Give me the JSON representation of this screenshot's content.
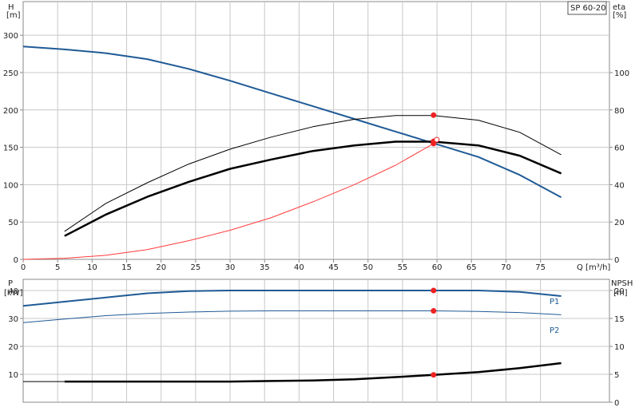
{
  "chart_data": [
    {
      "type": "line",
      "panel": "head-efficiency",
      "product_label": "SP 60-20",
      "x_unit_label": "Q [m³/h]",
      "x_ticks": [
        0,
        5,
        10,
        15,
        20,
        25,
        30,
        35,
        40,
        45,
        50,
        55,
        60,
        65,
        70,
        75
      ],
      "xlim": [
        0,
        85
      ],
      "y_left": {
        "label_top": "H",
        "label_unit": "[m]",
        "ticks": [
          0,
          50,
          100,
          150,
          200,
          250,
          300
        ],
        "ylim": [
          0,
          345
        ]
      },
      "y_right": {
        "label_top": "eta",
        "label_unit": "[%]",
        "ticks": [
          0,
          20,
          40,
          60,
          80,
          100
        ],
        "ylim": [
          0,
          138
        ]
      },
      "grid": true,
      "series": [
        {
          "axis": "left",
          "color": "#1f5a96",
          "width": 2,
          "x": [
            0,
            6,
            12,
            18,
            24,
            30,
            36,
            42,
            48,
            54,
            60,
            66,
            72,
            78
          ],
          "y": [
            285,
            281,
            276,
            268,
            255,
            239,
            222,
            205,
            188,
            171,
            154,
            137,
            113,
            83
          ]
        },
        {
          "axis": "left",
          "color": "#ff3b3b",
          "width": 1,
          "x": [
            0,
            6,
            12,
            18,
            24,
            30,
            36,
            42,
            48,
            54,
            59.5
          ],
          "y": [
            0,
            1.5,
            5.5,
            13,
            25,
            39,
            56,
            77,
            100,
            126,
            155
          ]
        },
        {
          "axis": "right",
          "color": "#000000",
          "width": 1,
          "x": [
            6,
            12,
            18,
            24,
            30,
            36,
            42,
            48,
            54,
            59.5,
            66,
            72,
            78
          ],
          "y": [
            15,
            30,
            41,
            51,
            59,
            65.5,
            71,
            75,
            77,
            77,
            74.5,
            68,
            56
          ]
        },
        {
          "axis": "right",
          "color": "#000000",
          "width": 2.5,
          "x": [
            6,
            12,
            18,
            24,
            30,
            36,
            42,
            48,
            54,
            59.5,
            66,
            72,
            78
          ],
          "y": [
            12.5,
            24,
            33.5,
            41.5,
            48.5,
            53.5,
            58,
            61,
            63,
            63,
            61,
            55.5,
            46
          ]
        }
      ],
      "markers": [
        {
          "axis": "left",
          "x": 59.5,
          "y": 193
        },
        {
          "axis": "left",
          "x": 59.5,
          "y": 158
        },
        {
          "axis": "left",
          "x": 59.5,
          "y": 155
        }
      ]
    },
    {
      "type": "line",
      "panel": "power-npsh",
      "y_left": {
        "label_top": "P",
        "label_unit": "[kW]",
        "ticks": [
          10,
          20,
          30,
          40
        ],
        "ylim": [
          0,
          44
        ]
      },
      "y_right": {
        "label_top": "NPSH",
        "label_unit": "[m]",
        "ticks": [
          0,
          5,
          10,
          15,
          20
        ],
        "ylim": [
          0,
          22
        ]
      },
      "series": [
        {
          "name": "P1",
          "axis": "left",
          "color": "#1f5a96",
          "width": 2,
          "x": [
            0,
            6,
            12,
            18,
            24,
            30,
            36,
            42,
            48,
            54,
            59.5,
            66,
            72,
            78
          ],
          "y": [
            34.5,
            36,
            37.5,
            39,
            39.8,
            40,
            40,
            40,
            40,
            40,
            40,
            40,
            39.5,
            38
          ]
        },
        {
          "name": "P2",
          "axis": "left",
          "color": "#1f5a96",
          "width": 1,
          "x": [
            0,
            6,
            12,
            18,
            24,
            30,
            36,
            42,
            48,
            54,
            59.5,
            66,
            72,
            78
          ],
          "y": [
            28.5,
            29.8,
            31,
            31.8,
            32.3,
            32.6,
            32.7,
            32.7,
            32.7,
            32.7,
            32.7,
            32.5,
            32.1,
            31.3
          ]
        },
        {
          "axis": "right",
          "color": "#000000",
          "width": 2.5,
          "x": [
            6,
            12,
            18,
            24,
            30,
            36,
            42,
            48,
            54,
            59.5,
            66,
            72,
            78
          ],
          "y": [
            3.7,
            3.7,
            3.7,
            3.7,
            3.7,
            3.8,
            3.9,
            4.1,
            4.5,
            4.9,
            5.4,
            6.1,
            7
          ]
        }
      ],
      "series_thin": {
        "axis": "right",
        "color": "#000000",
        "width": 1,
        "x": [
          0,
          6
        ],
        "y": [
          3.7,
          3.7
        ]
      },
      "markers": [
        {
          "axis": "left",
          "x": 59.5,
          "y": 40
        },
        {
          "axis": "left",
          "x": 59.5,
          "y": 32.7
        },
        {
          "axis": "right",
          "x": 59.5,
          "y": 4.9
        }
      ]
    }
  ]
}
